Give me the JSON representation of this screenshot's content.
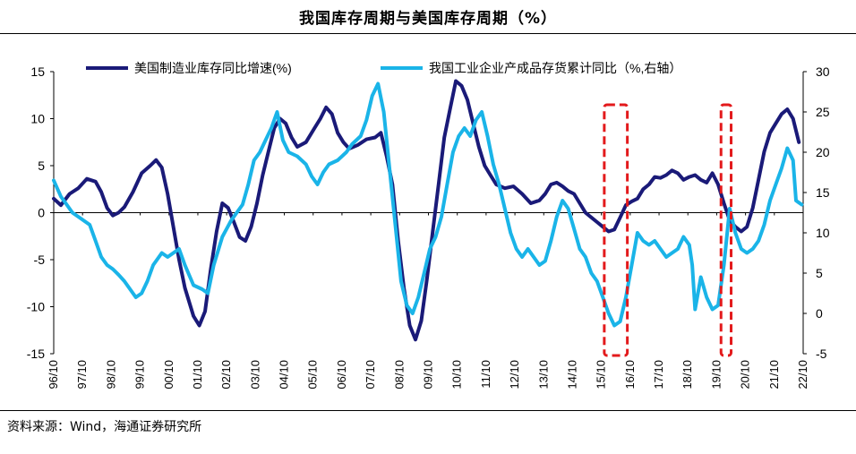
{
  "title": "我国库存周期与美国库存周期（%）",
  "source": "资料来源：Wind，海通证券研究所",
  "colors": {
    "us": "#1a1a78",
    "cn": "#1ab4e8",
    "box": "#e31a1c",
    "axis": "#000000"
  },
  "chart_data": {
    "type": "line",
    "x_labels": [
      "96/10",
      "97/10",
      "98/10",
      "99/10",
      "00/10",
      "01/10",
      "02/10",
      "03/10",
      "04/10",
      "05/10",
      "06/10",
      "07/10",
      "08/10",
      "09/10",
      "10/10",
      "11/10",
      "12/10",
      "13/10",
      "14/10",
      "15/10",
      "16/10",
      "17/10",
      "18/10",
      "19/10",
      "20/10",
      "21/10",
      "22/10"
    ],
    "x_range": [
      1996.75,
      2022.75
    ],
    "y_left": {
      "range": [
        -15,
        15
      ],
      "ticks": [
        -15,
        -10,
        -5,
        0,
        5,
        10,
        15
      ]
    },
    "y_right": {
      "range": [
        -5,
        30
      ],
      "ticks": [
        -5,
        0,
        5,
        10,
        15,
        20,
        25,
        30
      ]
    },
    "series": [
      {
        "name": "美国制造业库存同比增速(%)",
        "axis": "left",
        "points": [
          [
            1996.75,
            1.5
          ],
          [
            1997.0,
            0.8
          ],
          [
            1997.3,
            2.0
          ],
          [
            1997.6,
            2.6
          ],
          [
            1997.9,
            3.6
          ],
          [
            1998.2,
            3.3
          ],
          [
            1998.4,
            2.2
          ],
          [
            1998.6,
            0.5
          ],
          [
            1998.8,
            -0.3
          ],
          [
            1999.0,
            0.0
          ],
          [
            1999.2,
            0.6
          ],
          [
            1999.5,
            2.2
          ],
          [
            1999.8,
            4.2
          ],
          [
            2000.1,
            5.0
          ],
          [
            2000.3,
            5.6
          ],
          [
            2000.5,
            4.8
          ],
          [
            2000.7,
            2.0
          ],
          [
            2000.9,
            -1.5
          ],
          [
            2001.1,
            -5.0
          ],
          [
            2001.3,
            -8.0
          ],
          [
            2001.6,
            -11.0
          ],
          [
            2001.8,
            -12.0
          ],
          [
            2002.0,
            -10.5
          ],
          [
            2002.2,
            -6.0
          ],
          [
            2002.4,
            -2.0
          ],
          [
            2002.6,
            1.0
          ],
          [
            2002.8,
            0.5
          ],
          [
            2003.0,
            -1.0
          ],
          [
            2003.2,
            -2.6
          ],
          [
            2003.4,
            -3.0
          ],
          [
            2003.6,
            -1.5
          ],
          [
            2003.8,
            1.0
          ],
          [
            2004.0,
            4.0
          ],
          [
            2004.2,
            6.5
          ],
          [
            2004.4,
            9.0
          ],
          [
            2004.6,
            10.0
          ],
          [
            2004.8,
            9.5
          ],
          [
            2005.0,
            8.0
          ],
          [
            2005.2,
            7.0
          ],
          [
            2005.5,
            7.5
          ],
          [
            2005.8,
            9.0
          ],
          [
            2006.0,
            10.0
          ],
          [
            2006.2,
            11.2
          ],
          [
            2006.4,
            10.5
          ],
          [
            2006.6,
            8.5
          ],
          [
            2006.8,
            7.5
          ],
          [
            2007.0,
            6.8
          ],
          [
            2007.3,
            7.2
          ],
          [
            2007.6,
            7.8
          ],
          [
            2007.9,
            8.0
          ],
          [
            2008.1,
            8.5
          ],
          [
            2008.3,
            6.0
          ],
          [
            2008.5,
            3.0
          ],
          [
            2008.7,
            -3.0
          ],
          [
            2008.9,
            -8.0
          ],
          [
            2009.1,
            -12.0
          ],
          [
            2009.3,
            -13.5
          ],
          [
            2009.5,
            -11.5
          ],
          [
            2009.7,
            -7.0
          ],
          [
            2009.9,
            -2.0
          ],
          [
            2010.1,
            3.0
          ],
          [
            2010.3,
            8.0
          ],
          [
            2010.5,
            11.0
          ],
          [
            2010.7,
            14.0
          ],
          [
            2010.9,
            13.5
          ],
          [
            2011.1,
            12.0
          ],
          [
            2011.3,
            9.5
          ],
          [
            2011.5,
            7.0
          ],
          [
            2011.7,
            5.0
          ],
          [
            2011.9,
            4.0
          ],
          [
            2012.1,
            3.0
          ],
          [
            2012.4,
            2.6
          ],
          [
            2012.7,
            2.8
          ],
          [
            2013.0,
            2.0
          ],
          [
            2013.3,
            1.0
          ],
          [
            2013.6,
            1.3
          ],
          [
            2013.8,
            2.0
          ],
          [
            2014.0,
            3.0
          ],
          [
            2014.2,
            3.2
          ],
          [
            2014.4,
            2.8
          ],
          [
            2014.6,
            2.3
          ],
          [
            2014.8,
            2.0
          ],
          [
            2015.0,
            1.0
          ],
          [
            2015.2,
            0.0
          ],
          [
            2015.4,
            -0.5
          ],
          [
            2015.6,
            -1.0
          ],
          [
            2015.8,
            -1.5
          ],
          [
            2016.0,
            -2.0
          ],
          [
            2016.2,
            -1.8
          ],
          [
            2016.4,
            -0.5
          ],
          [
            2016.6,
            0.8
          ],
          [
            2016.8,
            1.2
          ],
          [
            2017.0,
            1.5
          ],
          [
            2017.2,
            2.5
          ],
          [
            2017.4,
            3.0
          ],
          [
            2017.6,
            3.8
          ],
          [
            2017.8,
            3.7
          ],
          [
            2018.0,
            4.0
          ],
          [
            2018.2,
            4.5
          ],
          [
            2018.4,
            4.2
          ],
          [
            2018.6,
            3.5
          ],
          [
            2018.8,
            3.8
          ],
          [
            2019.0,
            4.0
          ],
          [
            2019.2,
            3.5
          ],
          [
            2019.4,
            3.2
          ],
          [
            2019.6,
            4.2
          ],
          [
            2019.8,
            3.0
          ],
          [
            2020.0,
            1.0
          ],
          [
            2020.2,
            -0.8
          ],
          [
            2020.4,
            -1.5
          ],
          [
            2020.6,
            -2.0
          ],
          [
            2020.8,
            -1.5
          ],
          [
            2021.0,
            0.5
          ],
          [
            2021.2,
            3.5
          ],
          [
            2021.4,
            6.5
          ],
          [
            2021.6,
            8.5
          ],
          [
            2021.8,
            9.5
          ],
          [
            2022.0,
            10.5
          ],
          [
            2022.2,
            11.0
          ],
          [
            2022.4,
            10.0
          ],
          [
            2022.6,
            7.5
          ]
        ]
      },
      {
        "name": "我国工业企业产成品存货累计同比（%,右轴）",
        "axis": "right",
        "points": [
          [
            1996.75,
            16.5
          ],
          [
            1997.0,
            14.5
          ],
          [
            1997.2,
            13.5
          ],
          [
            1997.4,
            12.5
          ],
          [
            1997.6,
            12.0
          ],
          [
            1997.8,
            11.5
          ],
          [
            1998.0,
            11.0
          ],
          [
            1998.2,
            9.0
          ],
          [
            1998.4,
            7.0
          ],
          [
            1998.6,
            6.0
          ],
          [
            1998.8,
            5.5
          ],
          [
            1999.0,
            4.8
          ],
          [
            1999.2,
            4.0
          ],
          [
            1999.4,
            3.0
          ],
          [
            1999.6,
            2.0
          ],
          [
            1999.8,
            2.5
          ],
          [
            2000.0,
            4.0
          ],
          [
            2000.2,
            6.0
          ],
          [
            2000.5,
            7.5
          ],
          [
            2000.7,
            7.0
          ],
          [
            2000.9,
            7.5
          ],
          [
            2001.1,
            8.0
          ],
          [
            2001.3,
            6.0
          ],
          [
            2001.6,
            3.5
          ],
          [
            2001.9,
            3.0
          ],
          [
            2002.1,
            2.5
          ],
          [
            2002.3,
            6.0
          ],
          [
            2002.6,
            9.5
          ],
          [
            2002.9,
            11.5
          ],
          [
            2003.1,
            12.5
          ],
          [
            2003.3,
            13.5
          ],
          [
            2003.5,
            16.0
          ],
          [
            2003.7,
            19.0
          ],
          [
            2003.9,
            20.0
          ],
          [
            2004.1,
            21.5
          ],
          [
            2004.3,
            23.0
          ],
          [
            2004.5,
            25.0
          ],
          [
            2004.7,
            21.5
          ],
          [
            2004.9,
            20.0
          ],
          [
            2005.2,
            19.5
          ],
          [
            2005.5,
            18.5
          ],
          [
            2005.7,
            17.0
          ],
          [
            2005.9,
            16.0
          ],
          [
            2006.1,
            17.5
          ],
          [
            2006.3,
            18.5
          ],
          [
            2006.6,
            19.0
          ],
          [
            2006.9,
            20.0
          ],
          [
            2007.1,
            21.0
          ],
          [
            2007.4,
            22.0
          ],
          [
            2007.6,
            24.0
          ],
          [
            2007.8,
            27.0
          ],
          [
            2008.0,
            28.5
          ],
          [
            2008.2,
            25.0
          ],
          [
            2008.4,
            18.0
          ],
          [
            2008.6,
            11.0
          ],
          [
            2008.8,
            4.0
          ],
          [
            2009.0,
            1.0
          ],
          [
            2009.2,
            0.0
          ],
          [
            2009.4,
            2.0
          ],
          [
            2009.6,
            5.0
          ],
          [
            2009.8,
            8.0
          ],
          [
            2010.0,
            9.5
          ],
          [
            2010.2,
            12.0
          ],
          [
            2010.4,
            16.0
          ],
          [
            2010.6,
            20.0
          ],
          [
            2010.8,
            22.0
          ],
          [
            2011.0,
            23.0
          ],
          [
            2011.2,
            22.0
          ],
          [
            2011.4,
            24.0
          ],
          [
            2011.6,
            25.0
          ],
          [
            2011.8,
            22.0
          ],
          [
            2012.0,
            18.5
          ],
          [
            2012.2,
            16.0
          ],
          [
            2012.4,
            13.0
          ],
          [
            2012.6,
            10.0
          ],
          [
            2012.8,
            8.0
          ],
          [
            2013.0,
            7.0
          ],
          [
            2013.2,
            8.0
          ],
          [
            2013.4,
            7.0
          ],
          [
            2013.6,
            6.0
          ],
          [
            2013.8,
            6.5
          ],
          [
            2014.0,
            9.0
          ],
          [
            2014.2,
            12.0
          ],
          [
            2014.4,
            14.0
          ],
          [
            2014.6,
            13.0
          ],
          [
            2014.8,
            10.5
          ],
          [
            2015.0,
            8.0
          ],
          [
            2015.2,
            7.0
          ],
          [
            2015.4,
            5.0
          ],
          [
            2015.6,
            4.0
          ],
          [
            2015.8,
            2.0
          ],
          [
            2016.0,
            0.0
          ],
          [
            2016.2,
            -1.5
          ],
          [
            2016.4,
            -1.0
          ],
          [
            2016.6,
            2.0
          ],
          [
            2016.8,
            6.0
          ],
          [
            2017.0,
            10.0
          ],
          [
            2017.2,
            9.0
          ],
          [
            2017.4,
            8.5
          ],
          [
            2017.6,
            9.0
          ],
          [
            2017.8,
            8.0
          ],
          [
            2018.0,
            7.0
          ],
          [
            2018.2,
            7.5
          ],
          [
            2018.4,
            8.0
          ],
          [
            2018.6,
            9.5
          ],
          [
            2018.8,
            8.5
          ],
          [
            2018.9,
            6.0
          ],
          [
            2019.0,
            0.5
          ],
          [
            2019.2,
            4.5
          ],
          [
            2019.4,
            2.0
          ],
          [
            2019.6,
            0.5
          ],
          [
            2019.8,
            1.0
          ],
          [
            2020.0,
            6.0
          ],
          [
            2020.2,
            13.0
          ],
          [
            2020.4,
            10.0
          ],
          [
            2020.6,
            8.0
          ],
          [
            2020.8,
            7.5
          ],
          [
            2021.0,
            8.0
          ],
          [
            2021.2,
            9.0
          ],
          [
            2021.4,
            11.0
          ],
          [
            2021.6,
            14.0
          ],
          [
            2021.8,
            16.0
          ],
          [
            2022.0,
            18.0
          ],
          [
            2022.2,
            20.5
          ],
          [
            2022.4,
            19.0
          ],
          [
            2022.5,
            14.0
          ],
          [
            2022.7,
            13.5
          ]
        ]
      }
    ],
    "highlight_ranges": [
      [
        2015.85,
        2016.65
      ],
      [
        2019.9,
        2020.25
      ]
    ],
    "legend_position": "top",
    "grid": false
  }
}
